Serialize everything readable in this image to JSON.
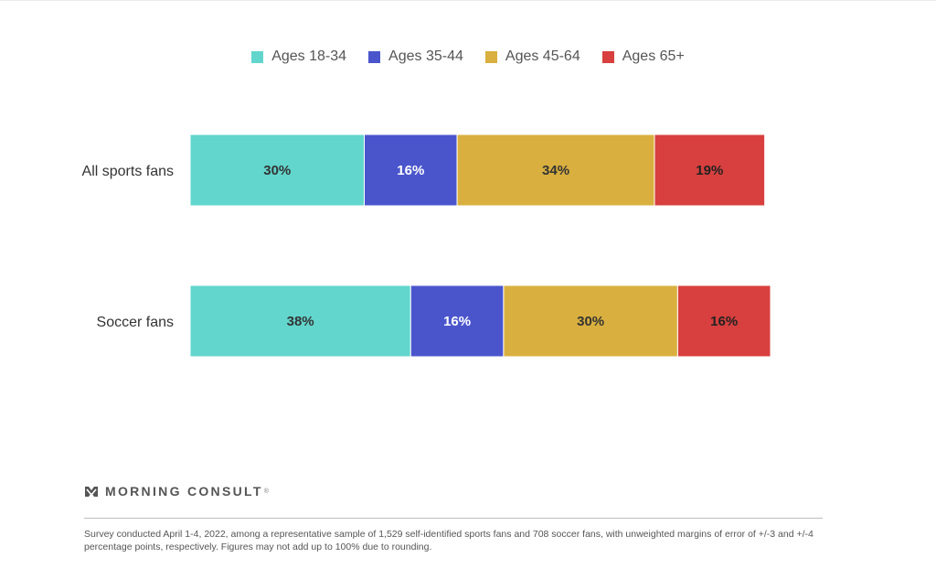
{
  "chart_data": {
    "type": "bar",
    "orientation": "horizontal",
    "stacked": true,
    "categories": [
      "All sports fans",
      "Soccer fans"
    ],
    "series": [
      {
        "name": "Ages 18-34",
        "values": [
          30,
          38
        ],
        "color": "#62d6cd",
        "label_color": "#333333"
      },
      {
        "name": "Ages 35-44",
        "values": [
          16,
          16
        ],
        "color": "#4a55cc",
        "label_color": "#ffffff"
      },
      {
        "name": "Ages 45-64",
        "values": [
          34,
          30
        ],
        "color": "#d9b03f",
        "label_color": "#333333"
      },
      {
        "name": "Ages 65+",
        "values": [
          19,
          16
        ],
        "color": "#d7403e",
        "label_color": "#222222"
      }
    ],
    "value_suffix": "%",
    "legend_position": "top",
    "grid": false
  },
  "branding": {
    "name": "MORNING CONSULT",
    "mark": "®"
  },
  "footnote": "Survey conducted April 1-4, 2022, among a representative sample of 1,529 self-identified sports fans and 708 soccer fans, with unweighted margins of error of +/-3 and +/-4 percentage points, respectively. Figures may not add up to 100% due to rounding."
}
